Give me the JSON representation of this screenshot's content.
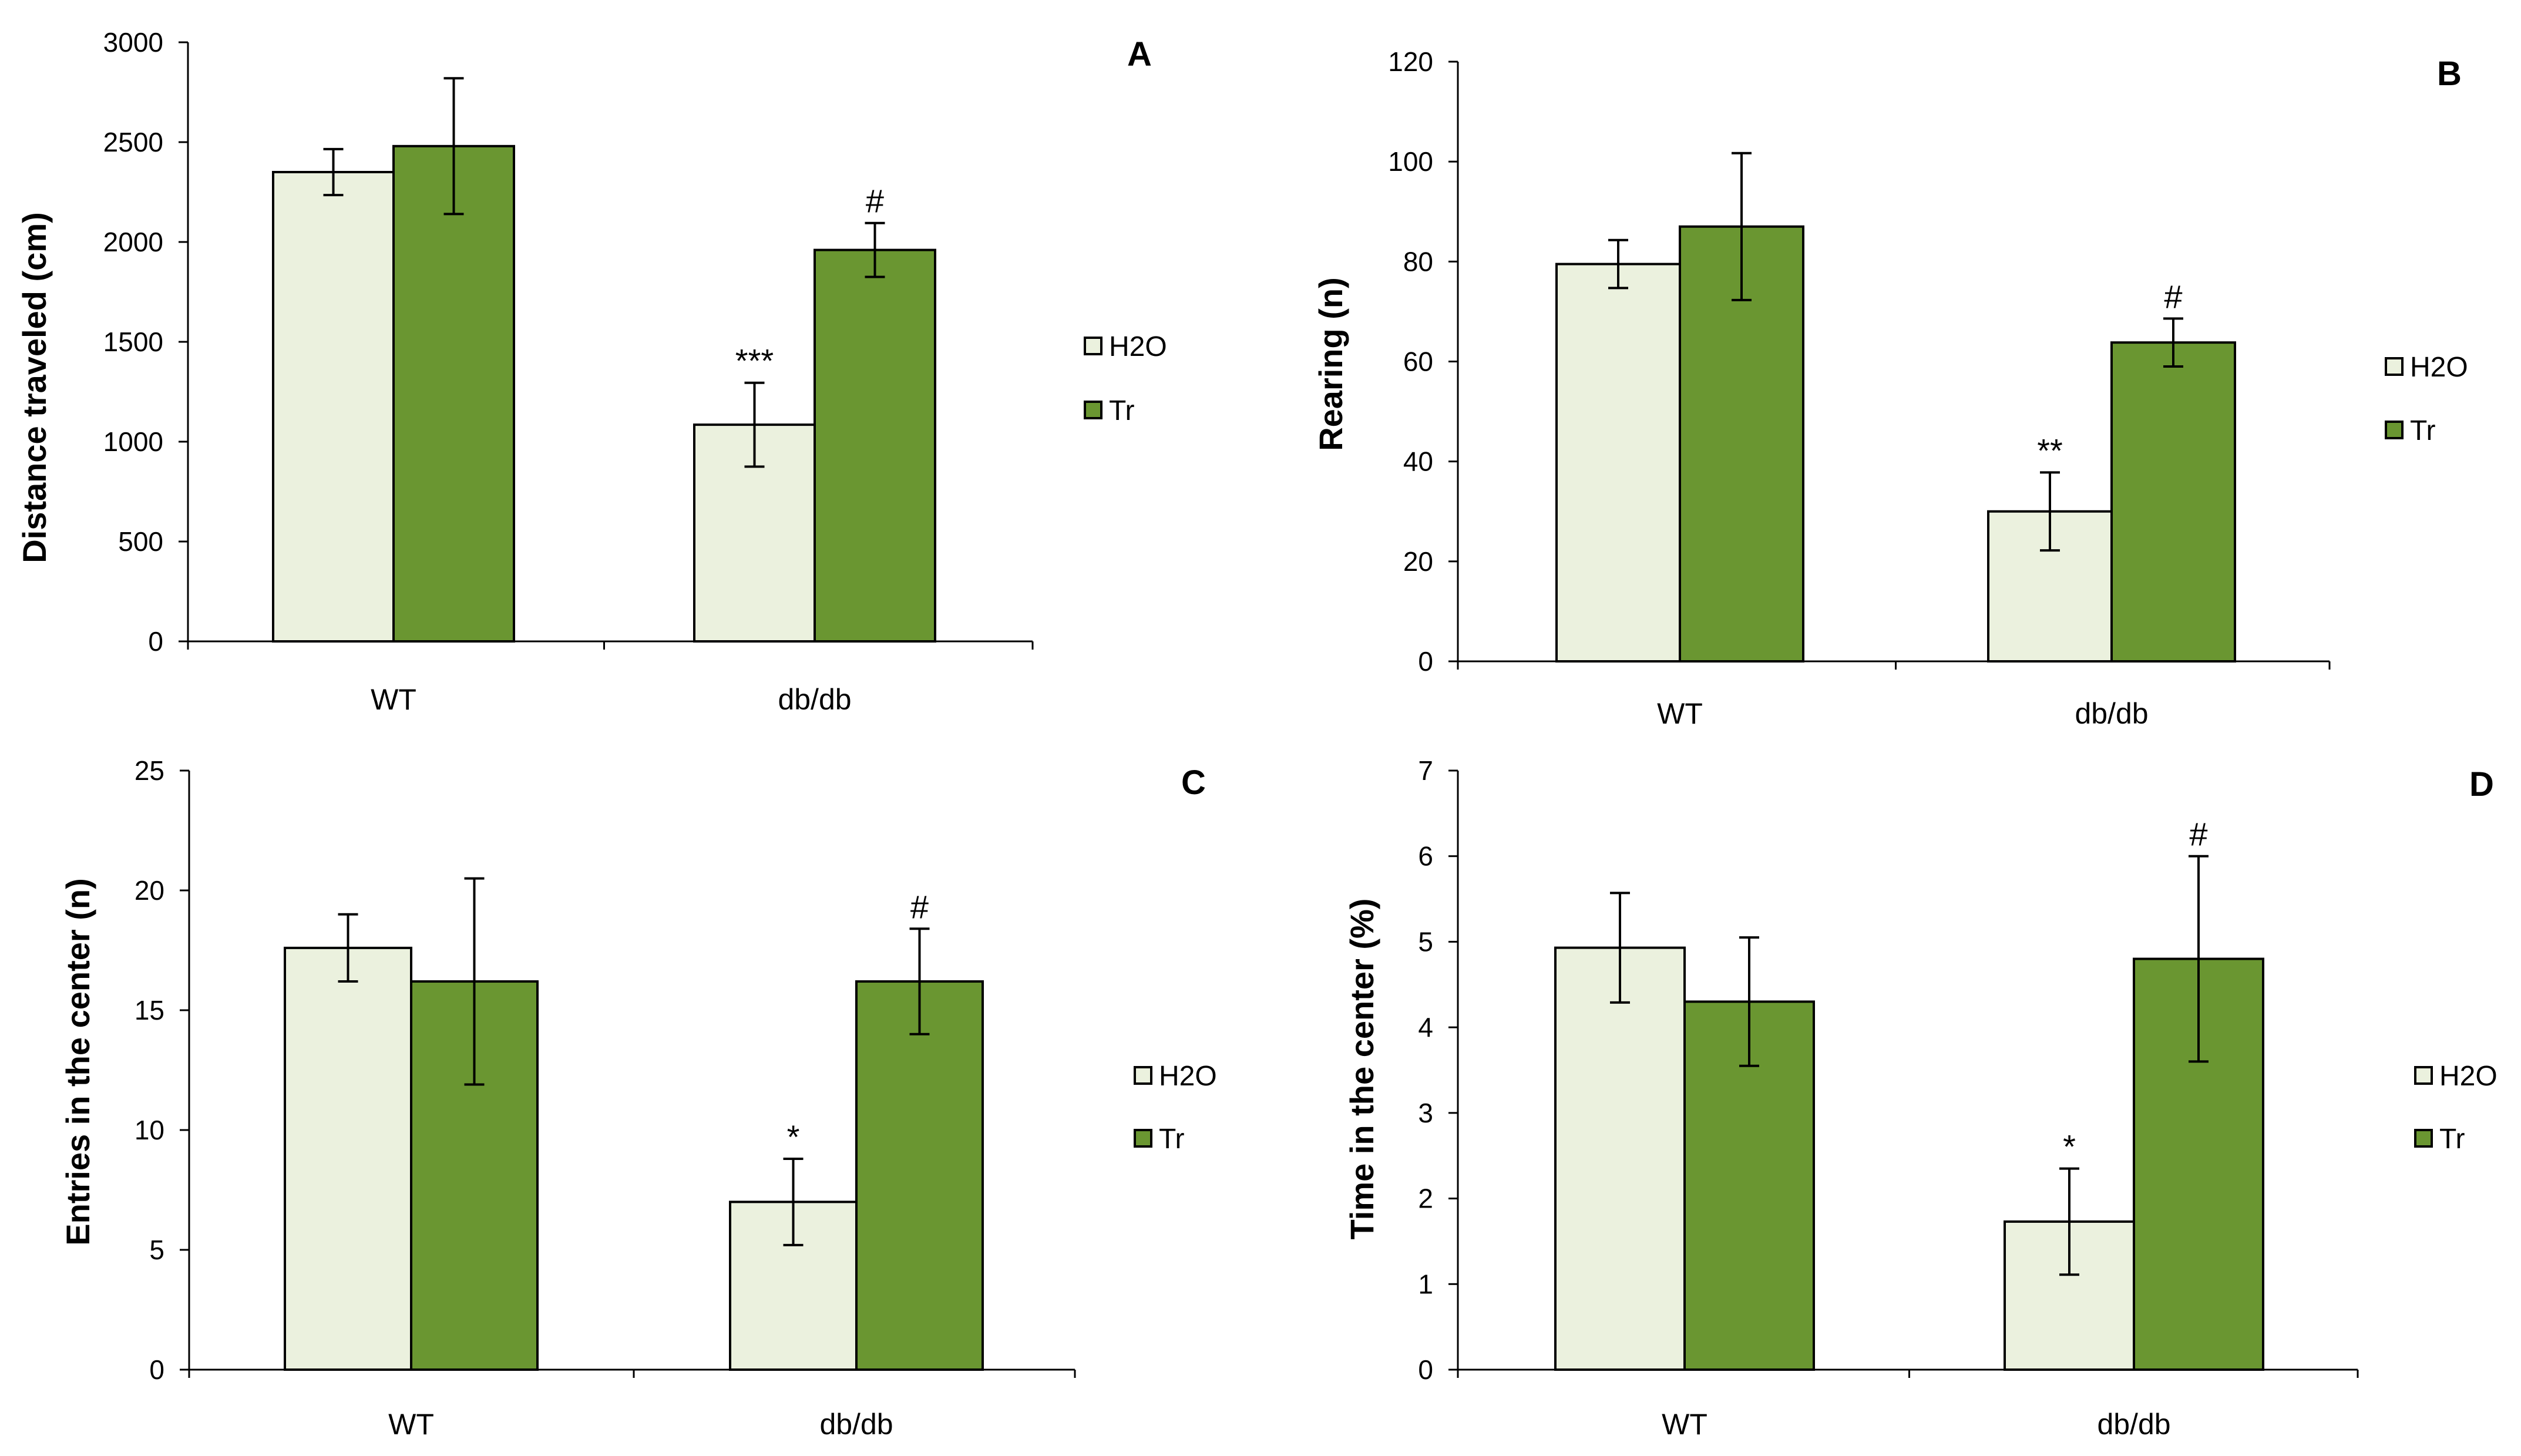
{
  "colors": {
    "h2o": "#ebf1de",
    "tr": "#6a9631",
    "stroke": "#000000",
    "background": "#ffffff"
  },
  "chart_data": [
    {
      "type": "bar",
      "panel": "A",
      "categories": [
        "WT",
        "db/db"
      ],
      "ylabel": "Distance traveled (cm)",
      "ylim": [
        0,
        3000
      ],
      "yticks": [
        "0",
        "500",
        "1000",
        "1500",
        "2000",
        "2500",
        "3000"
      ],
      "series": [
        {
          "name": "H2O",
          "values": [
            2350,
            1085
          ],
          "errors": [
            115,
            210
          ],
          "significance": [
            "",
            "***"
          ]
        },
        {
          "name": "Tr",
          "values": [
            2480,
            1960
          ],
          "errors": [
            340,
            135
          ],
          "significance": [
            "",
            "#"
          ]
        }
      ]
    },
    {
      "type": "bar",
      "panel": "B",
      "categories": [
        "WT",
        "db/db"
      ],
      "ylabel": "Rearing (n)",
      "ylim": [
        0,
        120
      ],
      "yticks": [
        "0",
        "20",
        "40",
        "60",
        "80",
        "100",
        "120"
      ],
      "series": [
        {
          "name": "H2O",
          "values": [
            79.5,
            30
          ],
          "errors": [
            4.8,
            7.8
          ],
          "significance": [
            "",
            "**"
          ]
        },
        {
          "name": "Tr",
          "values": [
            87,
            63.8
          ],
          "errors": [
            14.7,
            4.8
          ],
          "significance": [
            "",
            "#"
          ]
        }
      ]
    },
    {
      "type": "bar",
      "panel": "C",
      "categories": [
        "WT",
        "db/db"
      ],
      "ylabel": "Entries in the center (n)",
      "ylim": [
        0,
        25
      ],
      "yticks": [
        "0",
        "5",
        "10",
        "15",
        "20",
        "25"
      ],
      "series": [
        {
          "name": "H2O",
          "values": [
            17.6,
            7.0
          ],
          "errors": [
            1.4,
            1.8
          ],
          "significance": [
            "",
            "*"
          ]
        },
        {
          "name": "Tr",
          "values": [
            16.2,
            16.2
          ],
          "errors": [
            4.3,
            2.2
          ],
          "significance": [
            "",
            "#"
          ]
        }
      ]
    },
    {
      "type": "bar",
      "panel": "D",
      "categories": [
        "WT",
        "db/db"
      ],
      "ylabel": "Time in the center (%)",
      "ylim": [
        0,
        7
      ],
      "yticks": [
        "0",
        "1",
        "2",
        "3",
        "4",
        "5",
        "6",
        "7"
      ],
      "series": [
        {
          "name": "H2O",
          "values": [
            4.93,
            1.73
          ],
          "errors": [
            0.64,
            0.62
          ],
          "significance": [
            "",
            "*"
          ]
        },
        {
          "name": "Tr",
          "values": [
            4.3,
            4.8
          ],
          "errors": [
            0.75,
            1.2
          ],
          "significance": [
            "",
            "#"
          ]
        }
      ]
    }
  ]
}
